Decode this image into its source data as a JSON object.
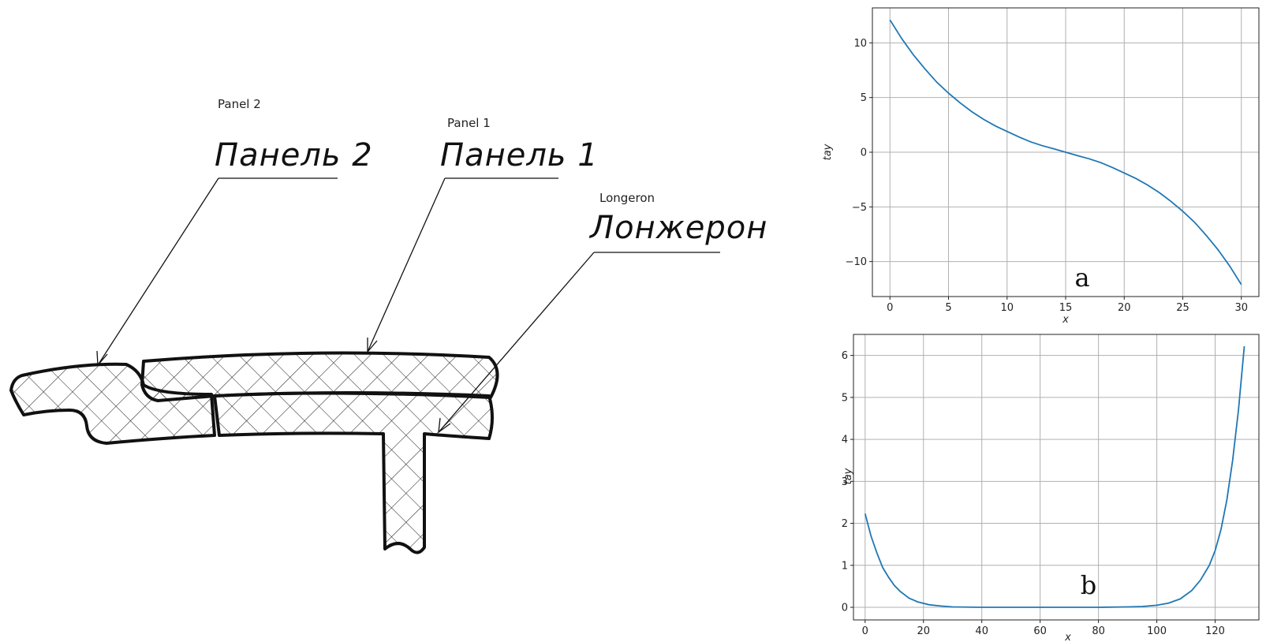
{
  "diagram": {
    "panel2": {
      "label_en": "Panel 2",
      "label_ru": "Панель 2"
    },
    "panel1": {
      "label_en": "Panel 1",
      "label_ru": "Панель 1"
    },
    "longeron": {
      "label_en": "Longeron",
      "label_ru": "Лонжерон"
    },
    "colors": {
      "outline": "#111111",
      "hatch": "#222222"
    }
  },
  "chart_data": [
    {
      "type": "line",
      "panel_label": "a",
      "xlabel": "x",
      "ylabel": "tay",
      "xlim": [
        -1.5,
        31.5
      ],
      "ylim": [
        -13.2,
        13.2
      ],
      "xticks": [
        0,
        5,
        10,
        15,
        20,
        25,
        30
      ],
      "yticks": [
        10,
        5,
        0,
        -5,
        -10
      ],
      "ytick_labels": [
        "10",
        "5",
        "0",
        "−5",
        "−10"
      ],
      "grid": true,
      "color": "#1f77b4",
      "x": [
        0,
        1,
        2,
        3,
        4,
        5,
        6,
        7,
        8,
        9,
        10,
        11,
        12,
        13,
        14,
        15,
        16,
        17,
        18,
        19,
        20,
        21,
        22,
        23,
        24,
        25,
        26,
        27,
        28,
        29,
        30
      ],
      "y": [
        12.1,
        10.4,
        8.9,
        7.6,
        6.4,
        5.4,
        4.5,
        3.7,
        3.0,
        2.4,
        1.9,
        1.4,
        0.95,
        0.6,
        0.3,
        0.0,
        -0.3,
        -0.6,
        -0.95,
        -1.4,
        -1.9,
        -2.4,
        -3.0,
        -3.7,
        -4.5,
        -5.4,
        -6.4,
        -7.6,
        -8.9,
        -10.4,
        -12.1
      ]
    },
    {
      "type": "line",
      "panel_label": "b",
      "xlabel": "x",
      "ylabel": "tay",
      "xlim": [
        -4,
        135
      ],
      "ylim": [
        -0.3,
        6.5
      ],
      "xticks": [
        0,
        20,
        40,
        60,
        80,
        100,
        120
      ],
      "yticks": [
        0,
        1,
        2,
        3,
        4,
        5,
        6
      ],
      "grid": true,
      "color": "#1f77b4",
      "x": [
        0,
        2,
        4,
        6,
        8,
        10,
        12,
        15,
        18,
        22,
        26,
        30,
        40,
        50,
        60,
        70,
        80,
        90,
        95,
        100,
        104,
        108,
        112,
        115,
        118,
        120,
        122,
        124,
        126,
        128,
        130
      ],
      "y": [
        2.23,
        1.7,
        1.3,
        0.95,
        0.72,
        0.52,
        0.38,
        0.22,
        0.13,
        0.06,
        0.03,
        0.01,
        0.0,
        0.0,
        0.0,
        0.0,
        0.0,
        0.01,
        0.02,
        0.05,
        0.1,
        0.2,
        0.4,
        0.65,
        1.0,
        1.35,
        1.85,
        2.55,
        3.5,
        4.7,
        6.22
      ]
    }
  ]
}
